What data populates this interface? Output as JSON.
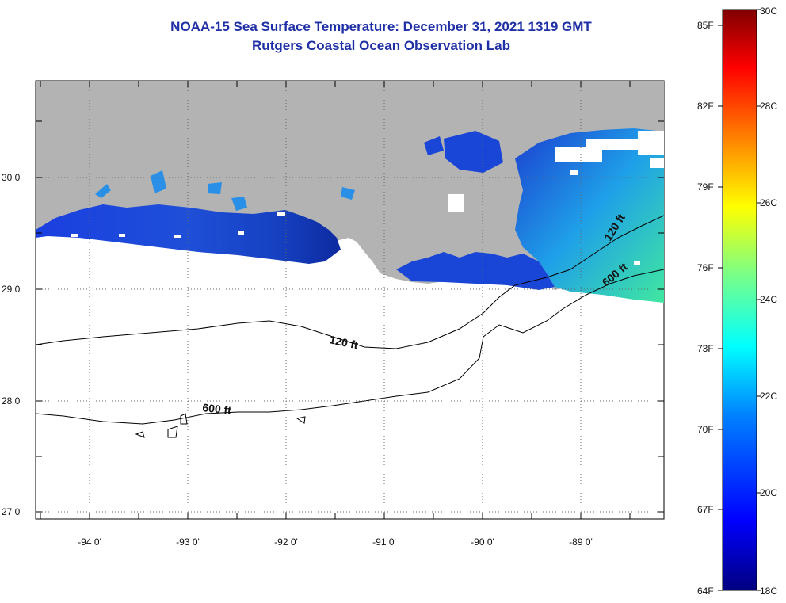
{
  "title": {
    "line1": "NOAA-15 Sea Surface Temperature:  December 31, 2021 1319 GMT",
    "line2": "Rutgers Coastal Ocean Observation Lab"
  },
  "map": {
    "lat_labels": [
      "30 0'",
      "29 0'",
      "28 0'",
      "27 0'"
    ],
    "lon_labels": [
      "-94 0'",
      "-93 0'",
      "-92 0'",
      "-91 0'",
      "-90 0'",
      "-89 0'"
    ],
    "contours": [
      "120 ft",
      "600 ft"
    ],
    "contour_labels": [
      "120 ft",
      "120 ft",
      "600 ft",
      "600 ft"
    ],
    "colors": {
      "land": "#b3b3b3",
      "cloud": "#ffffff",
      "contour_line": "#000000",
      "grid": "#555555"
    }
  },
  "colorbar": {
    "fahrenheit_labels": [
      "85F",
      "82F",
      "79F",
      "76F",
      "73F",
      "70F",
      "67F",
      "64F"
    ],
    "celsius_labels": [
      "30C",
      "28C",
      "26C",
      "24C",
      "22C",
      "20C",
      "18C"
    ],
    "range_celsius": [
      18,
      30
    ],
    "palette": [
      "#00007f",
      "#0000ff",
      "#0080ff",
      "#00ffff",
      "#80ff80",
      "#ffff00",
      "#ff8000",
      "#ff0000",
      "#7f0000"
    ]
  }
}
